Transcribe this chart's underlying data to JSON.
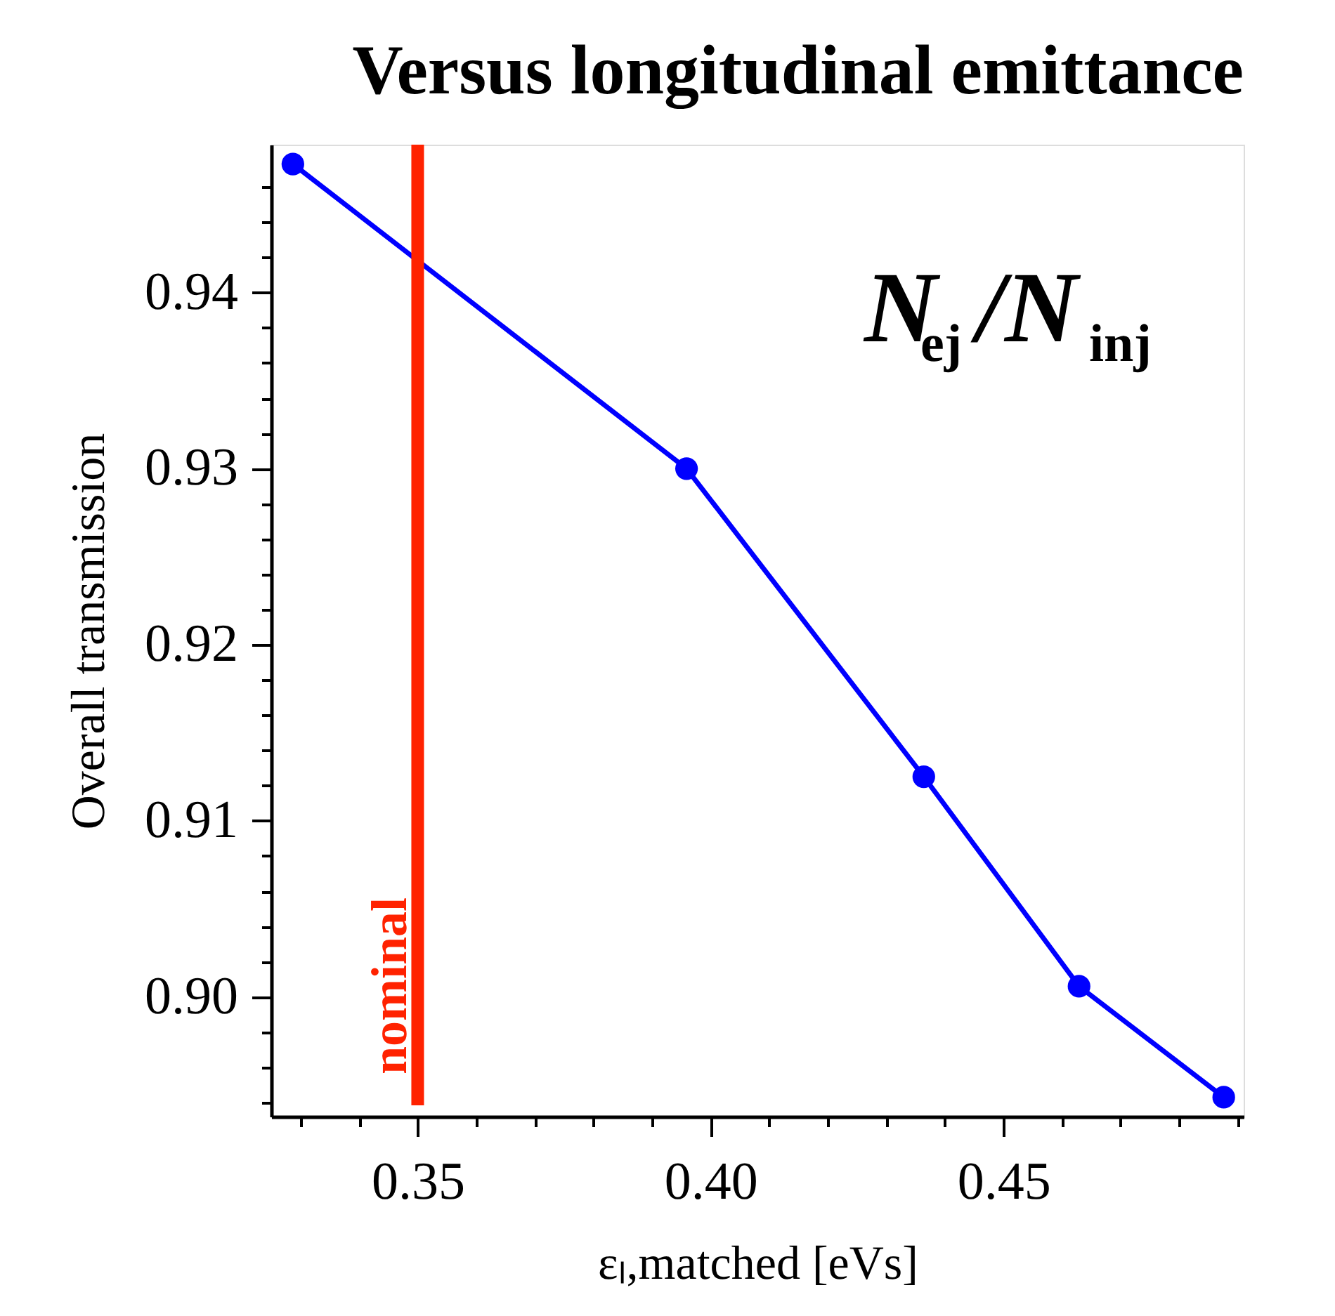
{
  "chart_data": {
    "type": "line",
    "title": "Versus longitudinal emittance",
    "xlabel": "εₗ,matched [eVs]",
    "ylabel": "Overall transmission",
    "x": [
      0.3287,
      0.3959,
      0.4364,
      0.4629,
      0.4876
    ],
    "series": [
      {
        "color": "#0000ff",
        "values": [
          0.9473,
          0.93,
          0.9125,
          0.9006,
          0.8943
        ]
      }
    ],
    "xlim": [
      0.325,
      0.491
    ],
    "ylim": [
      0.8932,
      0.9484
    ],
    "xticks": [
      {
        "value": 0.33,
        "label": null
      },
      {
        "value": 0.34,
        "label": null
      },
      0.35,
      {
        "value": 0.36,
        "label": null
      },
      {
        "value": 0.37,
        "label": null
      },
      {
        "value": 0.38,
        "label": null
      },
      {
        "value": 0.39,
        "label": null
      },
      {
        "value": 0.4,
        "label": "0.40"
      },
      {
        "value": 0.41,
        "label": null
      },
      {
        "value": 0.42,
        "label": null
      },
      {
        "value": 0.43,
        "label": null
      },
      {
        "value": 0.44,
        "label": null
      },
      0.45,
      {
        "value": 0.46,
        "label": null
      },
      {
        "value": 0.47,
        "label": null
      },
      {
        "value": 0.48,
        "label": null
      },
      {
        "value": 0.49,
        "label": null
      }
    ],
    "yticks": [
      {
        "value": 0.894,
        "label": null
      },
      {
        "value": 0.896,
        "label": null
      },
      {
        "value": 0.898,
        "label": null
      },
      {
        "value": 0.9,
        "label": "0.90"
      },
      {
        "value": 0.902,
        "label": null
      },
      {
        "value": 0.904,
        "label": null
      },
      {
        "value": 0.906,
        "label": null
      },
      {
        "value": 0.908,
        "label": null
      },
      0.91,
      {
        "value": 0.912,
        "label": null
      },
      {
        "value": 0.914,
        "label": null
      },
      {
        "value": 0.916,
        "label": null
      },
      {
        "value": 0.918,
        "label": null
      },
      0.92,
      {
        "value": 0.922,
        "label": null
      },
      {
        "value": 0.924,
        "label": null
      },
      {
        "value": 0.926,
        "label": null
      },
      {
        "value": 0.928,
        "label": null
      },
      0.93,
      {
        "value": 0.932,
        "label": null
      },
      {
        "value": 0.934,
        "label": null
      },
      {
        "value": 0.936,
        "label": null
      },
      {
        "value": 0.938,
        "label": null
      },
      0.94,
      {
        "value": 0.942,
        "label": null
      },
      {
        "value": 0.944,
        "label": null
      },
      {
        "value": 0.946,
        "label": null
      }
    ],
    "ref_lines": [
      {
        "axis": "x",
        "value": 0.35,
        "label": "nominal",
        "color": "#ff2200"
      }
    ],
    "annotations": [
      "N$_{ej}$/N$_{inj}$"
    ],
    "grid": false,
    "marker": "circle",
    "line_style": "solid"
  }
}
